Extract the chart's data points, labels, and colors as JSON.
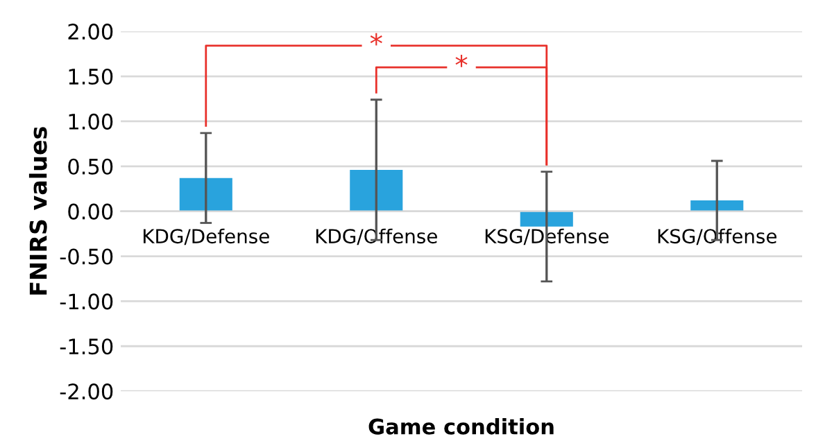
{
  "chart_data": {
    "type": "bar",
    "xlabel": "Game condition",
    "ylabel": "FNIRS values",
    "categories": [
      "KDG/Defense",
      "KDG/Offense",
      "KSG/Defense",
      "KSG/Offense"
    ],
    "values": [
      0.37,
      0.46,
      -0.17,
      0.12
    ],
    "errors": [
      0.5,
      0.78,
      0.61,
      0.44
    ],
    "color": "#29a3dd",
    "ylim": [
      -2,
      2
    ],
    "yticks": [
      {
        "value": -2,
        "label": "-2.00"
      },
      {
        "value": -1.5,
        "label": "-1.50"
      },
      {
        "value": -1,
        "label": "-1.00"
      },
      {
        "value": -0.5,
        "label": "-0.50"
      },
      {
        "value": 0,
        "label": "0.00"
      },
      {
        "value": 0.5,
        "label": "0.50"
      },
      {
        "value": 1,
        "label": "1.00"
      },
      {
        "value": 1.5,
        "label": "1.50"
      },
      {
        "value": 2,
        "label": "2.00"
      }
    ],
    "grid": "y",
    "annotations": [
      "*",
      "*"
    ]
  }
}
